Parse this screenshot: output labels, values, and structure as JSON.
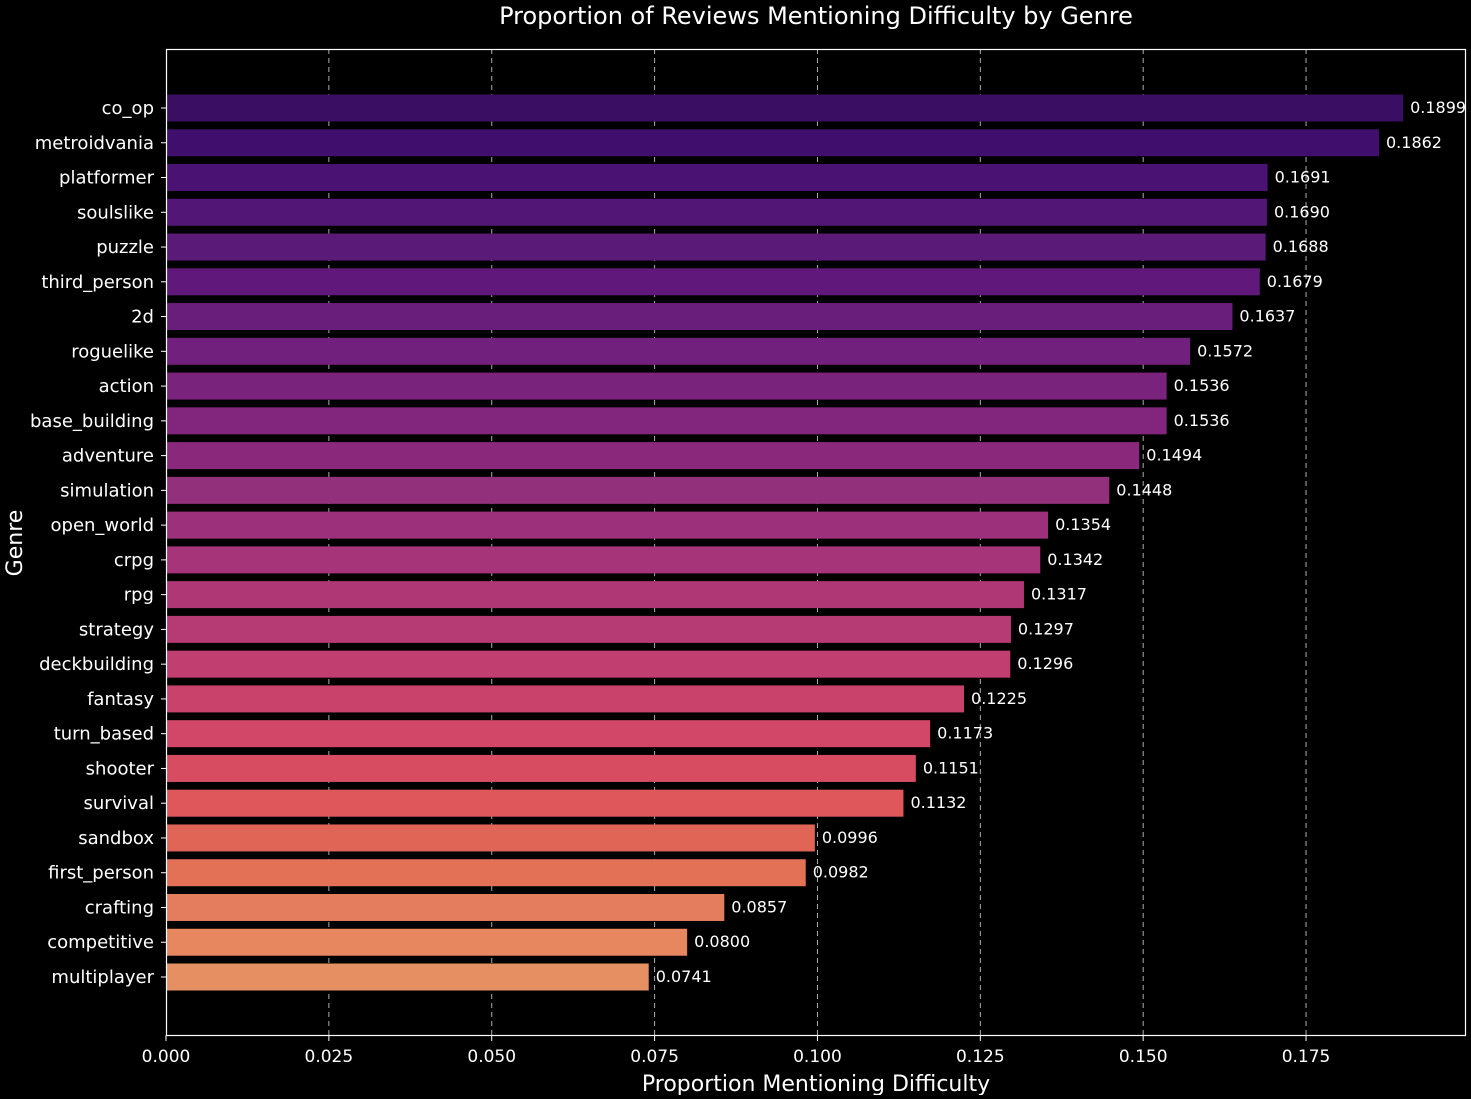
{
  "chart_data": {
    "type": "bar",
    "orientation": "horizontal",
    "title": "Proportion of Reviews Mentioning Difficulty by Genre",
    "xlabel": "Proportion Mentioning Difficulty",
    "ylabel": "Genre",
    "xlim": [
      0,
      0.1994
    ],
    "x_ticks": [
      0.0,
      0.025,
      0.05,
      0.075,
      0.1,
      0.125,
      0.15,
      0.175
    ],
    "x_tick_labels": [
      "0.000",
      "0.025",
      "0.050",
      "0.075",
      "0.100",
      "0.125",
      "0.150",
      "0.175"
    ],
    "grid": "vertical dashed",
    "background": "#000000",
    "text_color": "#ffffff",
    "categories": [
      "co_op",
      "metroidvania",
      "platformer",
      "soulslike",
      "puzzle",
      "third_person",
      "2d",
      "roguelike",
      "action",
      "base_building",
      "adventure",
      "simulation",
      "open_world",
      "crpg",
      "rpg",
      "strategy",
      "deckbuilding",
      "fantasy",
      "turn_based",
      "shooter",
      "survival",
      "sandbox",
      "first_person",
      "crafting",
      "competitive",
      "multiplayer"
    ],
    "values": [
      0.1899,
      0.1862,
      0.1691,
      0.169,
      0.1688,
      0.1679,
      0.1637,
      0.1572,
      0.1536,
      0.1536,
      0.1494,
      0.1448,
      0.1354,
      0.1342,
      0.1317,
      0.1297,
      0.1296,
      0.1225,
      0.1173,
      0.1151,
      0.1132,
      0.0996,
      0.0982,
      0.0857,
      0.08,
      0.0741
    ],
    "value_labels": [
      "0.1899",
      "0.1862",
      "0.1691",
      "0.1690",
      "0.1688",
      "0.1679",
      "0.1637",
      "0.1572",
      "0.1536",
      "0.1536",
      "0.1494",
      "0.1448",
      "0.1354",
      "0.1342",
      "0.1317",
      "0.1297",
      "0.1296",
      "0.1225",
      "0.1173",
      "0.1151",
      "0.1132",
      "0.0996",
      "0.0982",
      "0.0857",
      "0.0800",
      "0.0741"
    ],
    "colors": [
      "#3a0f63",
      "#400f6d",
      "#4a1272",
      "#521676",
      "#591a78",
      "#60197a",
      "#6a1e7c",
      "#72207d",
      "#7a237d",
      "#81257d",
      "#8a297c",
      "#93307b",
      "#9c307a",
      "#a53478",
      "#b03776",
      "#b63a73",
      "#c03e70",
      "#c9426b",
      "#d24667",
      "#d84c61",
      "#df575b",
      "#e16557",
      "#e37155",
      "#e47d5e",
      "#e68760",
      "#e68f62"
    ]
  }
}
